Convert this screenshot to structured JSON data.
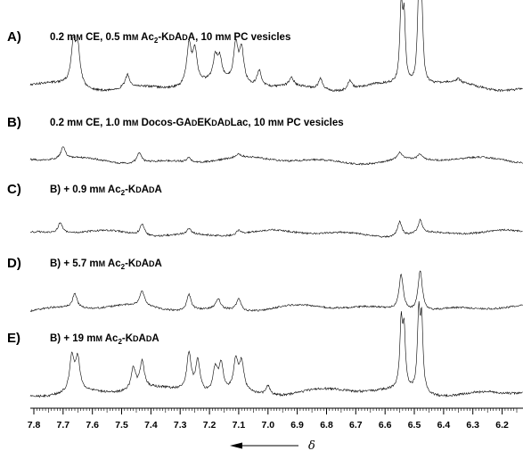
{
  "chart_data": {
    "type": "line",
    "xlabel": "δ",
    "xlim": [
      7.8,
      6.15
    ],
    "x_axis_reversed": true,
    "x_ticks": [
      "7.8",
      "7.7",
      "7.6",
      "7.5",
      "7.4",
      "7.3",
      "7.2",
      "7.1",
      "7.0",
      "6.9",
      "6.8",
      "6.7",
      "6.6",
      "6.5",
      "6.4",
      "6.3",
      "6.2"
    ],
    "grid": false,
    "panels": [
      {
        "letter": "A)",
        "caption": {
          "pre": "0.2 ",
          "mm": "mM",
          "mid": " CE, 0.5 ",
          "mm2": "mM",
          "post": " Ac",
          "sub": "2",
          "tail": "-KDADA, 10 mM PC vesicles"
        },
        "caption_text": "0.2 mM CE, 0.5 mM Ac2-KDADA, 10 mM PC vesicles",
        "peaks": [
          {
            "x": 7.665,
            "h": 0.55
          },
          {
            "x": 7.65,
            "h": 0.5
          },
          {
            "x": 7.48,
            "h": 0.18
          },
          {
            "x": 7.27,
            "h": 0.55
          },
          {
            "x": 7.25,
            "h": 0.45
          },
          {
            "x": 7.18,
            "h": 0.3
          },
          {
            "x": 7.165,
            "h": 0.28
          },
          {
            "x": 7.11,
            "h": 0.52
          },
          {
            "x": 7.09,
            "h": 0.45
          },
          {
            "x": 7.03,
            "h": 0.22
          },
          {
            "x": 6.92,
            "h": 0.12
          },
          {
            "x": 6.82,
            "h": 0.15
          },
          {
            "x": 6.72,
            "h": 0.12
          },
          {
            "x": 6.545,
            "h": 1.0
          },
          {
            "x": 6.535,
            "h": 0.85
          },
          {
            "x": 6.485,
            "h": 1.15
          },
          {
            "x": 6.475,
            "h": 1.0
          },
          {
            "x": 6.35,
            "h": 0.05
          }
        ]
      },
      {
        "letter": "B)",
        "caption_text": "0.2 mM CE, 1.0 mM Docos-GADEKDADLac, 10 mM PC vesicles",
        "peaks": [
          {
            "x": 7.7,
            "h": 0.22
          },
          {
            "x": 7.44,
            "h": 0.2
          },
          {
            "x": 7.27,
            "h": 0.08
          },
          {
            "x": 7.1,
            "h": 0.06
          },
          {
            "x": 6.55,
            "h": 0.14
          },
          {
            "x": 6.48,
            "h": 0.1
          }
        ]
      },
      {
        "letter": "C)",
        "caption_text": "B) + 0.9 mM Ac2-KDADA",
        "peaks": [
          {
            "x": 7.71,
            "h": 0.2
          },
          {
            "x": 7.43,
            "h": 0.22
          },
          {
            "x": 7.27,
            "h": 0.1
          },
          {
            "x": 7.1,
            "h": 0.08
          },
          {
            "x": 6.55,
            "h": 0.28
          },
          {
            "x": 6.48,
            "h": 0.25
          }
        ]
      },
      {
        "letter": "D)",
        "caption_text": "B) + 5.7 mM Ac2-KDADA",
        "peaks": [
          {
            "x": 7.66,
            "h": 0.25
          },
          {
            "x": 7.43,
            "h": 0.25
          },
          {
            "x": 7.27,
            "h": 0.28
          },
          {
            "x": 7.17,
            "h": 0.18
          },
          {
            "x": 7.1,
            "h": 0.22
          },
          {
            "x": 6.545,
            "h": 0.62
          },
          {
            "x": 6.48,
            "h": 0.7
          }
        ]
      },
      {
        "letter": "E)",
        "caption_text": "B) + 19 mM Ac2-KDADA",
        "peaks": [
          {
            "x": 7.67,
            "h": 0.55
          },
          {
            "x": 7.65,
            "h": 0.5
          },
          {
            "x": 7.46,
            "h": 0.35
          },
          {
            "x": 7.43,
            "h": 0.42
          },
          {
            "x": 7.27,
            "h": 0.6
          },
          {
            "x": 7.24,
            "h": 0.5
          },
          {
            "x": 7.18,
            "h": 0.38
          },
          {
            "x": 7.16,
            "h": 0.42
          },
          {
            "x": 7.11,
            "h": 0.48
          },
          {
            "x": 7.09,
            "h": 0.45
          },
          {
            "x": 7.0,
            "h": 0.15
          },
          {
            "x": 6.545,
            "h": 1.0
          },
          {
            "x": 6.535,
            "h": 0.85
          },
          {
            "x": 6.485,
            "h": 1.15
          },
          {
            "x": 6.475,
            "h": 1.05
          }
        ]
      }
    ]
  }
}
